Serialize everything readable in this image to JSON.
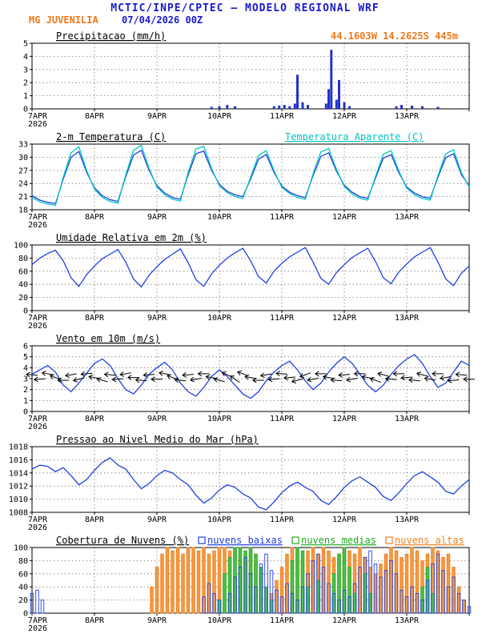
{
  "header": {
    "title": "MCTIC/INPE/CPTEC — MODELO REGIONAL WRF",
    "station": "MG JUVENILIA",
    "run_datetime": "07/04/2026 00Z",
    "location": "44.1603W 14.2625S 445m",
    "colors": {
      "title": "#1a1acc",
      "station": "#f07818",
      "datetime": "#1a1acc",
      "location": "#f07818"
    }
  },
  "x_axis": {
    "year_label": "2026",
    "day_labels": [
      "7APR",
      "8APR",
      "9APR",
      "10APR",
      "11APR",
      "12APR",
      "13APR"
    ],
    "tick_hours": [
      0,
      24,
      48,
      72,
      96,
      120,
      144,
      168
    ],
    "hours_total": 168
  },
  "chart_data": [
    {
      "id": "precipitation",
      "type": "bar",
      "title": "Precipitacao (mm/h)",
      "ylim": [
        0,
        5
      ],
      "yticks": [
        0,
        1,
        2,
        3,
        4,
        5
      ],
      "bar_color": "#2233cc",
      "points": [
        [
          69,
          0.15
        ],
        [
          72,
          0.2
        ],
        [
          75,
          0.3
        ],
        [
          78,
          0.2
        ],
        [
          93,
          0.2
        ],
        [
          95,
          0.25
        ],
        [
          97,
          0.3
        ],
        [
          99,
          0.2
        ],
        [
          101,
          0.4
        ],
        [
          102,
          2.6
        ],
        [
          104,
          0.5
        ],
        [
          106,
          0.3
        ],
        [
          113,
          0.4
        ],
        [
          114,
          1.5
        ],
        [
          115,
          4.5
        ],
        [
          117,
          0.7
        ],
        [
          118,
          2.2
        ],
        [
          120,
          0.5
        ],
        [
          122,
          0.2
        ],
        [
          140,
          0.2
        ],
        [
          142,
          0.3
        ],
        [
          146,
          0.25
        ],
        [
          150,
          0.2
        ],
        [
          156,
          0.15
        ]
      ]
    },
    {
      "id": "temperature",
      "type": "line",
      "title": "2-m Temperatura (C)",
      "subtitle": "Temperatura Aparente (C)",
      "subtitle_color": "#00c3c3",
      "ylim": [
        18,
        33
      ],
      "yticks": [
        18,
        21,
        24,
        27,
        30,
        33
      ],
      "series": [
        {
          "name": "2-m Temperatura (C)",
          "color": "#2040e0",
          "step_hours": 3,
          "values": [
            21.2,
            20.2,
            19.7,
            19.4,
            25.0,
            30.0,
            31.3,
            26.5,
            23.0,
            21.2,
            20.3,
            19.9,
            25.5,
            30.5,
            31.6,
            27.0,
            23.5,
            21.8,
            20.8,
            20.4,
            26.0,
            30.8,
            31.4,
            27.0,
            23.8,
            22.2,
            21.4,
            21.0,
            25.0,
            29.5,
            30.6,
            26.5,
            23.4,
            22.0,
            21.2,
            20.8,
            25.8,
            30.2,
            31.0,
            26.8,
            23.6,
            22.0,
            21.0,
            20.6,
            25.2,
            29.8,
            30.6,
            26.4,
            23.2,
            21.8,
            21.0,
            20.6,
            25.4,
            29.9,
            30.8,
            26.0,
            23.5
          ]
        },
        {
          "name": "Temperatura Aparente (C)",
          "color": "#00c3c3",
          "step_hours": 3,
          "values": [
            20.8,
            19.8,
            19.3,
            19.0,
            25.4,
            31.0,
            32.4,
            26.9,
            22.7,
            20.8,
            19.9,
            19.5,
            25.9,
            31.6,
            32.7,
            27.4,
            23.2,
            21.4,
            20.4,
            20.0,
            26.5,
            31.9,
            32.5,
            27.4,
            23.5,
            21.9,
            21.0,
            20.6,
            25.4,
            30.4,
            31.5,
            26.9,
            23.1,
            21.7,
            20.8,
            20.4,
            26.2,
            31.2,
            32.0,
            27.2,
            23.3,
            21.6,
            20.6,
            20.2,
            25.6,
            30.7,
            31.5,
            26.8,
            22.9,
            21.4,
            20.6,
            20.2,
            25.8,
            30.8,
            31.7,
            26.4,
            23.2
          ]
        }
      ]
    },
    {
      "id": "humidity",
      "type": "line",
      "title": "Umidade Relativa em 2m (%)",
      "ylim": [
        0,
        100
      ],
      "yticks": [
        0,
        20,
        40,
        60,
        80,
        100
      ],
      "series": [
        {
          "name": "Umidade Relativa em 2m (%)",
          "color": "#2040e0",
          "step_hours": 3,
          "values": [
            70,
            80,
            87,
            92,
            76,
            50,
            37,
            55,
            68,
            79,
            86,
            93,
            74,
            48,
            36,
            54,
            67,
            78,
            86,
            94,
            73,
            47,
            37,
            56,
            69,
            80,
            88,
            95,
            76,
            52,
            42,
            60,
            72,
            82,
            89,
            96,
            74,
            49,
            40,
            58,
            70,
            81,
            88,
            95,
            75,
            50,
            41,
            59,
            71,
            82,
            89,
            96,
            74,
            48,
            38,
            57,
            68
          ]
        }
      ]
    },
    {
      "id": "wind",
      "type": "line",
      "title": "Vento em 10m (m/s)",
      "ylim": [
        0,
        6
      ],
      "yticks": [
        0,
        1,
        2,
        3,
        4,
        5,
        6
      ],
      "series": [
        {
          "name": "Vento em 10m (m/s)",
          "color": "#2040e0",
          "step_hours": 3,
          "values": [
            3.4,
            3.8,
            4.2,
            3.6,
            2.4,
            1.8,
            2.6,
            3.5,
            4.4,
            4.8,
            4.2,
            3.0,
            2.0,
            1.6,
            2.4,
            3.4,
            4.0,
            4.5,
            3.8,
            2.6,
            1.8,
            1.4,
            2.2,
            3.2,
            3.8,
            3.2,
            2.4,
            1.6,
            1.2,
            1.8,
            2.8,
            3.6,
            4.2,
            4.6,
            3.8,
            2.8,
            2.0,
            2.6,
            3.6,
            4.4,
            5.0,
            4.4,
            3.4,
            2.4,
            1.8,
            2.4,
            3.4,
            4.2,
            4.8,
            5.2,
            4.4,
            3.2,
            2.2,
            2.6,
            3.6,
            4.6,
            4.2
          ]
        }
      ],
      "arrows": {
        "name": "wind-direction-arrows",
        "color": "#000000",
        "step_hours": 3,
        "plot_level": 3.1,
        "angles_deg": [
          185,
          175,
          190,
          200,
          180,
          170,
          165,
          175,
          190,
          195,
          185,
          175,
          170,
          180,
          185,
          175,
          180,
          190,
          200,
          185,
          175,
          170,
          180,
          190,
          195,
          205,
          215,
          200,
          190,
          180,
          170,
          175,
          185,
          175,
          165,
          160,
          170,
          180,
          190,
          185,
          175,
          170,
          180,
          190,
          200,
          195,
          185,
          180,
          175,
          185,
          195,
          190,
          180,
          170,
          175,
          185,
          180
        ]
      }
    },
    {
      "id": "pressure",
      "type": "line",
      "title": "Pressao ao Nivel Medio do Mar (hPa)",
      "ylim": [
        1008,
        1018
      ],
      "yticks": [
        1008,
        1010,
        1012,
        1014,
        1016,
        1018
      ],
      "series": [
        {
          "name": "Pressao ao Nivel Medio do Mar (hPa)",
          "color": "#2040e0",
          "step_hours": 3,
          "values": [
            1014.6,
            1015.2,
            1015.0,
            1014.2,
            1014.8,
            1013.6,
            1012.2,
            1013.0,
            1014.4,
            1015.6,
            1016.3,
            1015.2,
            1014.6,
            1013.0,
            1011.6,
            1012.4,
            1013.6,
            1014.4,
            1014.0,
            1013.0,
            1012.2,
            1010.6,
            1009.4,
            1010.2,
            1011.4,
            1012.2,
            1011.8,
            1010.8,
            1010.2,
            1008.8,
            1008.4,
            1009.6,
            1011.0,
            1012.0,
            1012.6,
            1011.8,
            1011.2,
            1009.8,
            1009.2,
            1010.4,
            1011.8,
            1012.8,
            1013.4,
            1012.6,
            1011.8,
            1010.4,
            1009.8,
            1011.0,
            1012.4,
            1013.6,
            1014.2,
            1013.4,
            1012.6,
            1011.2,
            1010.8,
            1012.0,
            1013.0
          ]
        }
      ]
    },
    {
      "id": "clouds",
      "type": "bar-multi",
      "title": "Cobertura de Nuvens (%)",
      "ylim": [
        0,
        100
      ],
      "yticks": [
        0,
        20,
        40,
        60,
        80,
        100
      ],
      "legend": [
        {
          "label": "nuvens baixas",
          "color": "#2040e0"
        },
        {
          "label": "nuvens medias",
          "color": "#22aa22"
        },
        {
          "label": "nuvens altas",
          "color": "#f08020"
        }
      ],
      "series": [
        {
          "name": "nuvens altas",
          "color": "#f08020",
          "fill": "#f49a40",
          "step_hours": 2,
          "values": [
            0,
            0,
            0,
            0,
            0,
            0,
            0,
            0,
            0,
            0,
            0,
            0,
            0,
            0,
            0,
            0,
            0,
            0,
            0,
            0,
            0,
            0,
            0,
            40,
            70,
            90,
            100,
            95,
            100,
            90,
            100,
            100,
            95,
            100,
            90,
            95,
            100,
            100,
            95,
            100,
            90,
            85,
            95,
            80,
            60,
            40,
            30,
            50,
            70,
            90,
            100,
            95,
            85,
            95,
            100,
            90,
            100,
            95,
            85,
            90,
            100,
            95,
            90,
            100,
            85,
            70,
            60,
            75,
            90,
            100,
            95,
            85,
            90,
            100,
            95,
            80,
            90,
            100,
            95,
            85,
            90,
            70,
            40,
            20,
            0
          ]
        },
        {
          "name": "nuvens medias",
          "color": "#22aa22",
          "fill": "#4cc04c",
          "step_hours": 2,
          "values": [
            0,
            0,
            0,
            0,
            0,
            0,
            0,
            0,
            0,
            0,
            0,
            0,
            0,
            0,
            0,
            0,
            0,
            0,
            0,
            0,
            0,
            0,
            0,
            0,
            0,
            0,
            0,
            0,
            0,
            0,
            0,
            0,
            0,
            0,
            0,
            0,
            20,
            60,
            85,
            100,
            100,
            95,
            100,
            90,
            70,
            40,
            20,
            0,
            0,
            0,
            80,
            100,
            95,
            40,
            0,
            50,
            0,
            0,
            60,
            90,
            100,
            70,
            30,
            0,
            60,
            30,
            0,
            0,
            0,
            0,
            0,
            0,
            0,
            0,
            0,
            40,
            70,
            30,
            0,
            0,
            0,
            0,
            0,
            0,
            0
          ]
        },
        {
          "name": "nuvens baixas",
          "color": "#2040e0",
          "fill": "none",
          "step_hours": 2,
          "values": [
            30,
            35,
            20,
            0,
            0,
            0,
            0,
            0,
            0,
            0,
            0,
            0,
            0,
            0,
            0,
            0,
            0,
            0,
            0,
            0,
            0,
            0,
            0,
            0,
            0,
            0,
            0,
            0,
            0,
            0,
            0,
            0,
            0,
            25,
            45,
            30,
            20,
            0,
            30,
            55,
            70,
            85,
            60,
            40,
            75,
            90,
            65,
            35,
            25,
            45,
            30,
            20,
            40,
            60,
            80,
            90,
            70,
            45,
            30,
            20,
            35,
            25,
            45,
            70,
            85,
            95,
            75,
            55,
            65,
            80,
            60,
            35,
            25,
            40,
            30,
            20,
            50,
            75,
            90,
            65,
            40,
            55,
            30,
            20,
            10
          ]
        }
      ]
    }
  ]
}
